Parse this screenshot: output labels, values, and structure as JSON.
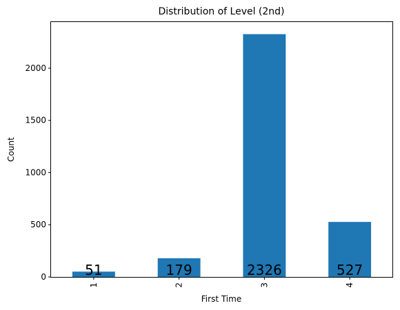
{
  "chart_data": {
    "type": "bar",
    "title": "Distribution of Level (2nd)",
    "xlabel": "First Time",
    "ylabel": "Count",
    "categories": [
      "1",
      "2",
      "3",
      "4"
    ],
    "values": [
      51,
      179,
      2326,
      527
    ],
    "data_labels": [
      "51",
      "179",
      "2326",
      "527"
    ],
    "ylim": [
      0,
      2442
    ],
    "yticks": [
      0,
      500,
      1000,
      1500,
      2000
    ],
    "ytick_labels": [
      "0",
      "500",
      "1000",
      "1500",
      "2000"
    ],
    "grid": false,
    "legend": "none",
    "bar_color": "#1f77b4"
  }
}
